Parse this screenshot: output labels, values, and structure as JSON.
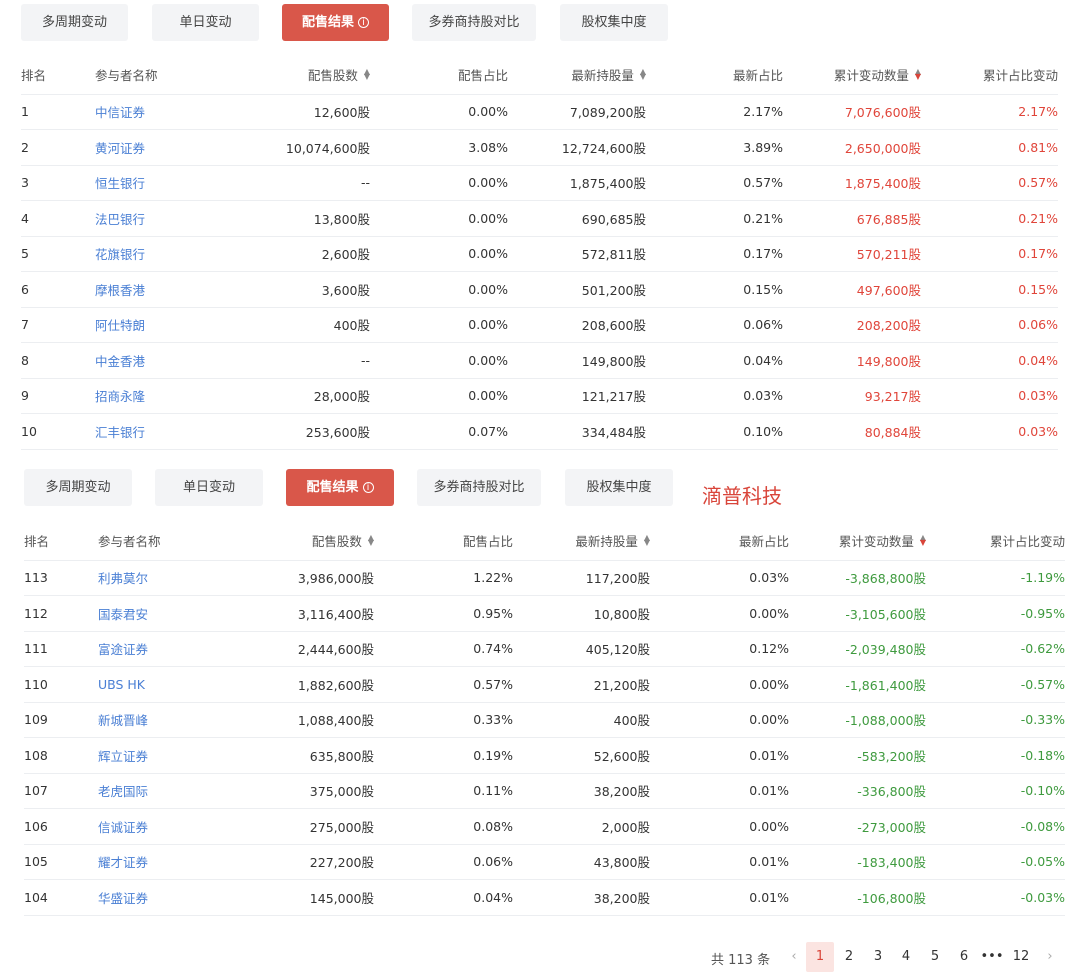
{
  "tabs": [
    "多周期变动",
    "单日变动",
    "配售结果",
    "多券商持股对比",
    "股权集中度"
  ],
  "active_tab_index": 2,
  "watermark": "滴普科技",
  "columns": [
    "排名",
    "参与者名称",
    "配售股数",
    "配售占比",
    "最新持股量",
    "最新占比",
    "累计变动数量",
    "累计占比变动"
  ],
  "top_rows": [
    {
      "rank": "1",
      "name": "中信证券",
      "alloc": "12,600股",
      "alloc_pct": "0.00%",
      "hold": "7,089,200股",
      "hold_pct": "2.17%",
      "chg": "7,076,600股",
      "chg_pct": "2.17%"
    },
    {
      "rank": "2",
      "name": "黄河证券",
      "alloc": "10,074,600股",
      "alloc_pct": "3.08%",
      "hold": "12,724,600股",
      "hold_pct": "3.89%",
      "chg": "2,650,000股",
      "chg_pct": "0.81%"
    },
    {
      "rank": "3",
      "name": "恒生银行",
      "alloc": "--",
      "alloc_pct": "0.00%",
      "hold": "1,875,400股",
      "hold_pct": "0.57%",
      "chg": "1,875,400股",
      "chg_pct": "0.57%"
    },
    {
      "rank": "4",
      "name": "法巴银行",
      "alloc": "13,800股",
      "alloc_pct": "0.00%",
      "hold": "690,685股",
      "hold_pct": "0.21%",
      "chg": "676,885股",
      "chg_pct": "0.21%"
    },
    {
      "rank": "5",
      "name": "花旗银行",
      "alloc": "2,600股",
      "alloc_pct": "0.00%",
      "hold": "572,811股",
      "hold_pct": "0.17%",
      "chg": "570,211股",
      "chg_pct": "0.17%"
    },
    {
      "rank": "6",
      "name": "摩根香港",
      "alloc": "3,600股",
      "alloc_pct": "0.00%",
      "hold": "501,200股",
      "hold_pct": "0.15%",
      "chg": "497,600股",
      "chg_pct": "0.15%"
    },
    {
      "rank": "7",
      "name": "阿仕特朗",
      "alloc": "400股",
      "alloc_pct": "0.00%",
      "hold": "208,600股",
      "hold_pct": "0.06%",
      "chg": "208,200股",
      "chg_pct": "0.06%"
    },
    {
      "rank": "8",
      "name": "中金香港",
      "alloc": "--",
      "alloc_pct": "0.00%",
      "hold": "149,800股",
      "hold_pct": "0.04%",
      "chg": "149,800股",
      "chg_pct": "0.04%"
    },
    {
      "rank": "9",
      "name": "招商永隆",
      "alloc": "28,000股",
      "alloc_pct": "0.00%",
      "hold": "121,217股",
      "hold_pct": "0.03%",
      "chg": "93,217股",
      "chg_pct": "0.03%"
    },
    {
      "rank": "10",
      "name": "汇丰银行",
      "alloc": "253,600股",
      "alloc_pct": "0.07%",
      "hold": "334,484股",
      "hold_pct": "0.10%",
      "chg": "80,884股",
      "chg_pct": "0.03%"
    }
  ],
  "bottom_rows": [
    {
      "rank": "113",
      "name": "利弗莫尔",
      "alloc": "3,986,000股",
      "alloc_pct": "1.22%",
      "hold": "117,200股",
      "hold_pct": "0.03%",
      "chg": "-3,868,800股",
      "chg_pct": "-1.19%"
    },
    {
      "rank": "112",
      "name": "国泰君安",
      "alloc": "3,116,400股",
      "alloc_pct": "0.95%",
      "hold": "10,800股",
      "hold_pct": "0.00%",
      "chg": "-3,105,600股",
      "chg_pct": "-0.95%"
    },
    {
      "rank": "111",
      "name": "富途证券",
      "alloc": "2,444,600股",
      "alloc_pct": "0.74%",
      "hold": "405,120股",
      "hold_pct": "0.12%",
      "chg": "-2,039,480股",
      "chg_pct": "-0.62%"
    },
    {
      "rank": "110",
      "name": "UBS HK",
      "alloc": "1,882,600股",
      "alloc_pct": "0.57%",
      "hold": "21,200股",
      "hold_pct": "0.00%",
      "chg": "-1,861,400股",
      "chg_pct": "-0.57%"
    },
    {
      "rank": "109",
      "name": "新城晋峰",
      "alloc": "1,088,400股",
      "alloc_pct": "0.33%",
      "hold": "400股",
      "hold_pct": "0.00%",
      "chg": "-1,088,000股",
      "chg_pct": "-0.33%"
    },
    {
      "rank": "108",
      "name": "辉立证券",
      "alloc": "635,800股",
      "alloc_pct": "0.19%",
      "hold": "52,600股",
      "hold_pct": "0.01%",
      "chg": "-583,200股",
      "chg_pct": "-0.18%"
    },
    {
      "rank": "107",
      "name": "老虎国际",
      "alloc": "375,000股",
      "alloc_pct": "0.11%",
      "hold": "38,200股",
      "hold_pct": "0.01%",
      "chg": "-336,800股",
      "chg_pct": "-0.10%"
    },
    {
      "rank": "106",
      "name": "信诚证券",
      "alloc": "275,000股",
      "alloc_pct": "0.08%",
      "hold": "2,000股",
      "hold_pct": "0.00%",
      "chg": "-273,000股",
      "chg_pct": "-0.08%"
    },
    {
      "rank": "105",
      "name": "耀才证券",
      "alloc": "227,200股",
      "alloc_pct": "0.06%",
      "hold": "43,800股",
      "hold_pct": "0.01%",
      "chg": "-183,400股",
      "chg_pct": "-0.05%"
    },
    {
      "rank": "104",
      "name": "华盛证券",
      "alloc": "145,000股",
      "alloc_pct": "0.04%",
      "hold": "38,200股",
      "hold_pct": "0.01%",
      "chg": "-106,800股",
      "chg_pct": "-0.03%"
    }
  ],
  "pagination": {
    "total_text": "共 113 条",
    "pages": [
      "1",
      "2",
      "3",
      "4",
      "5",
      "6",
      "•••",
      "12"
    ],
    "current": "1",
    "prev_icon": "chevron-left-icon",
    "next_icon": "chevron-right-icon"
  },
  "colors": {
    "accent": "#d9574a",
    "positive": "#e0453a",
    "negative": "#3e9a3e",
    "link": "#4a7fd4"
  }
}
